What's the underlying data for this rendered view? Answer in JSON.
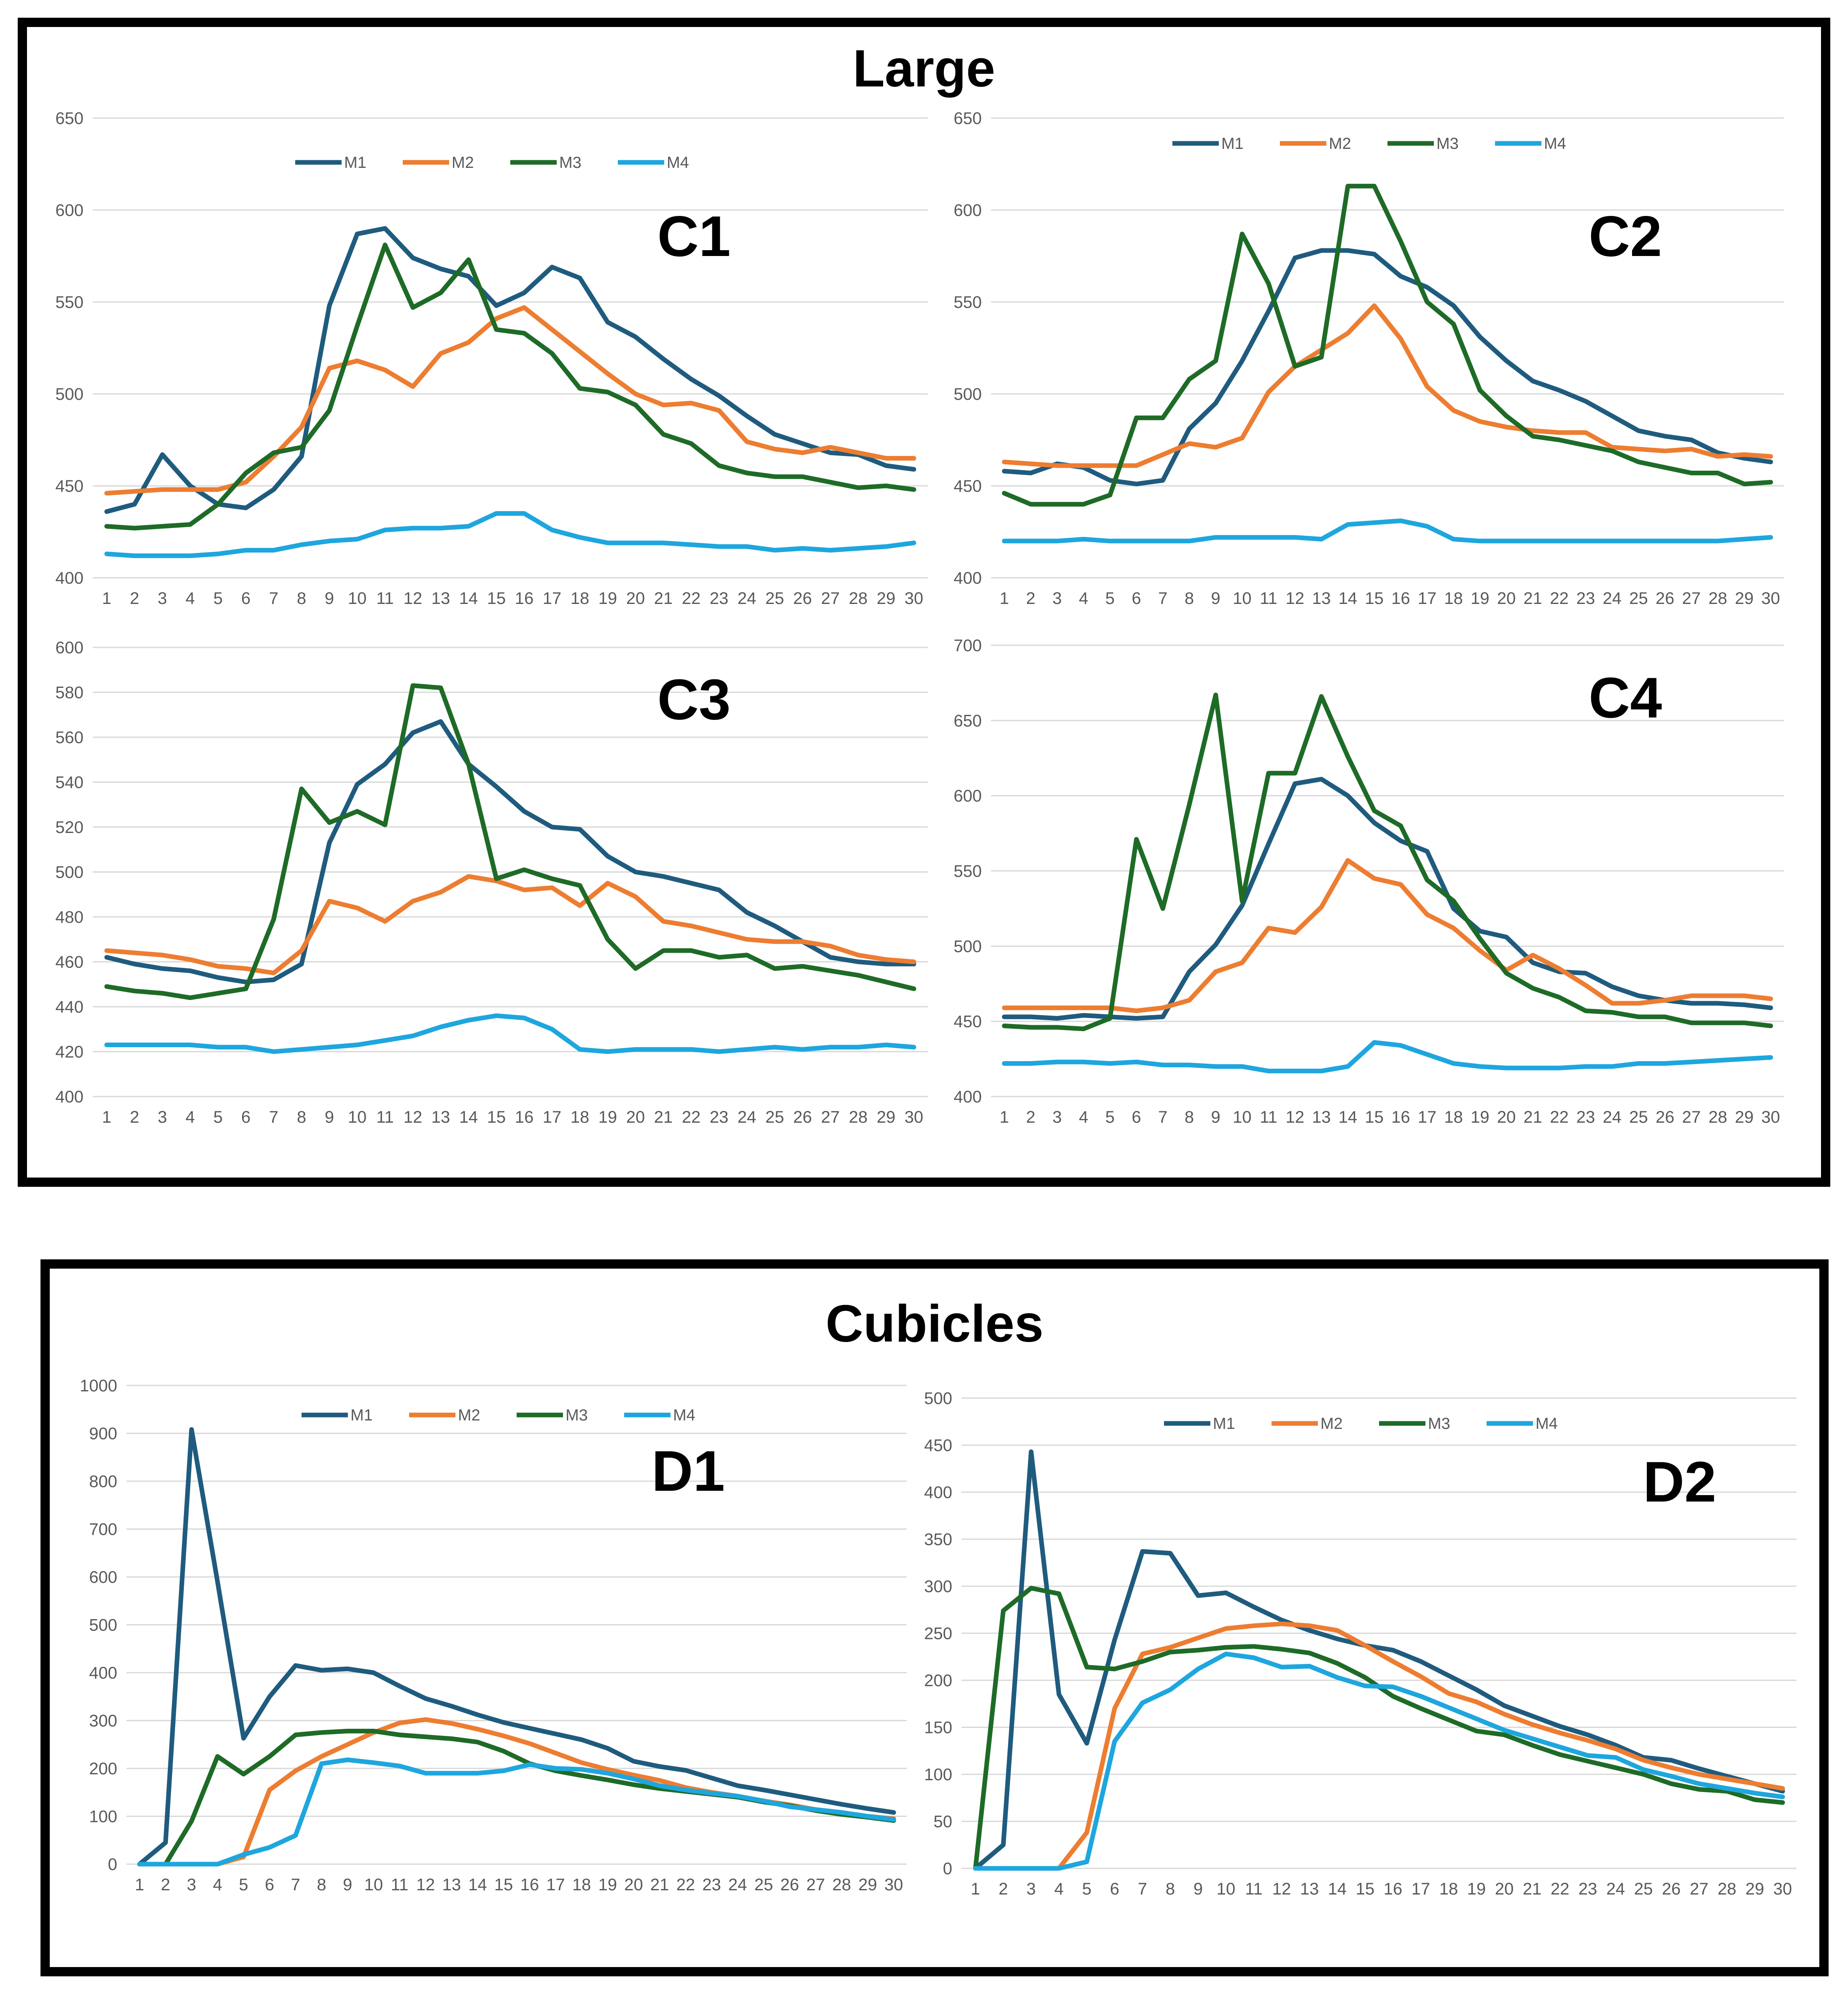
{
  "panels": {
    "large_title": "Large",
    "cubicles_title": "Cubicles"
  },
  "series_colors": {
    "M1": "#1f5b7e",
    "M2": "#ed7d31",
    "M3": "#1e6b27",
    "M4": "#1ea6de"
  },
  "chart_data": [
    {
      "id": "c1",
      "type": "line",
      "title": "C1",
      "group": "Large",
      "x": [
        1,
        2,
        3,
        4,
        5,
        6,
        7,
        8,
        9,
        10,
        11,
        12,
        13,
        14,
        15,
        16,
        17,
        18,
        19,
        20,
        21,
        22,
        23,
        24,
        25,
        26,
        27,
        28,
        29,
        30
      ],
      "ylim": [
        400,
        650
      ],
      "yticks": [
        400,
        450,
        500,
        550,
        600,
        650
      ],
      "legend": "top",
      "series": [
        {
          "name": "M1",
          "values": [
            436,
            440,
            467,
            450,
            440,
            438,
            448,
            466,
            548,
            587,
            590,
            574,
            568,
            564,
            548,
            555,
            569,
            563,
            539,
            531,
            519,
            508,
            499,
            488,
            478,
            473,
            468,
            467,
            461,
            459
          ]
        },
        {
          "name": "M2",
          "values": [
            446,
            447,
            448,
            448,
            448,
            452,
            466,
            482,
            514,
            518,
            513,
            504,
            522,
            528,
            541,
            547,
            535,
            523,
            511,
            500,
            494,
            495,
            491,
            474,
            470,
            468,
            471,
            468,
            465,
            465
          ]
        },
        {
          "name": "M3",
          "values": [
            428,
            427,
            428,
            429,
            440,
            457,
            468,
            471,
            491,
            537,
            581,
            547,
            555,
            573,
            535,
            533,
            522,
            503,
            501,
            494,
            478,
            473,
            461,
            457,
            455,
            455,
            452,
            449,
            450,
            448
          ]
        },
        {
          "name": "M4",
          "values": [
            413,
            412,
            412,
            412,
            413,
            415,
            415,
            418,
            420,
            421,
            426,
            427,
            427,
            428,
            435,
            435,
            426,
            422,
            419,
            419,
            419,
            418,
            417,
            417,
            415,
            416,
            415,
            416,
            417,
            419
          ]
        }
      ]
    },
    {
      "id": "c2",
      "type": "line",
      "title": "C2",
      "group": "Large",
      "x": [
        1,
        2,
        3,
        4,
        5,
        6,
        7,
        8,
        9,
        10,
        11,
        12,
        13,
        14,
        15,
        16,
        17,
        18,
        19,
        20,
        21,
        22,
        23,
        24,
        25,
        26,
        27,
        28,
        29,
        30
      ],
      "ylim": [
        400,
        650
      ],
      "yticks": [
        400,
        450,
        500,
        550,
        600,
        650
      ],
      "legend": "top",
      "series": [
        {
          "name": "M1",
          "values": [
            458,
            457,
            462,
            460,
            453,
            451,
            453,
            481,
            495,
            518,
            545,
            574,
            578,
            578,
            576,
            564,
            558,
            548,
            531,
            518,
            507,
            502,
            496,
            488,
            480,
            477,
            475,
            468,
            465,
            463
          ]
        },
        {
          "name": "M2",
          "values": [
            463,
            462,
            461,
            461,
            461,
            461,
            467,
            473,
            471,
            476,
            501,
            515,
            524,
            533,
            548,
            530,
            504,
            491,
            485,
            482,
            480,
            479,
            479,
            471,
            470,
            469,
            470,
            466,
            467,
            466
          ]
        },
        {
          "name": "M3",
          "values": [
            446,
            440,
            440,
            440,
            445,
            487,
            487,
            508,
            518,
            587,
            560,
            515,
            520,
            613,
            613,
            583,
            550,
            538,
            502,
            488,
            477,
            475,
            472,
            469,
            463,
            460,
            457,
            457,
            451,
            452
          ]
        },
        {
          "name": "M4",
          "values": [
            420,
            420,
            420,
            421,
            420,
            420,
            420,
            420,
            422,
            422,
            422,
            422,
            421,
            429,
            430,
            431,
            428,
            421,
            420,
            420,
            420,
            420,
            420,
            420,
            420,
            420,
            420,
            420,
            421,
            422
          ]
        }
      ]
    },
    {
      "id": "c3",
      "type": "line",
      "title": "C3",
      "group": "Large",
      "x": [
        1,
        2,
        3,
        4,
        5,
        6,
        7,
        8,
        9,
        10,
        11,
        12,
        13,
        14,
        15,
        16,
        17,
        18,
        19,
        20,
        21,
        22,
        23,
        24,
        25,
        26,
        27,
        28,
        29,
        30
      ],
      "ylim": [
        400,
        600
      ],
      "yticks": [
        400,
        420,
        440,
        460,
        480,
        500,
        520,
        540,
        560,
        580,
        600
      ],
      "legend": "none",
      "series": [
        {
          "name": "M1",
          "values": [
            462,
            459,
            457,
            456,
            453,
            451,
            452,
            459,
            513,
            539,
            548,
            562,
            567,
            548,
            538,
            527,
            520,
            519,
            507,
            500,
            498,
            495,
            492,
            482,
            476,
            469,
            462,
            460,
            459,
            459
          ]
        },
        {
          "name": "M2",
          "values": [
            465,
            464,
            463,
            461,
            458,
            457,
            455,
            465,
            487,
            484,
            478,
            487,
            491,
            498,
            496,
            492,
            493,
            485,
            495,
            489,
            478,
            476,
            473,
            470,
            469,
            469,
            467,
            463,
            461,
            460
          ]
        },
        {
          "name": "M3",
          "values": [
            449,
            447,
            446,
            444,
            446,
            448,
            479,
            537,
            522,
            527,
            521,
            583,
            582,
            548,
            497,
            501,
            497,
            494,
            470,
            457,
            465,
            465,
            462,
            463,
            457,
            458,
            456,
            454,
            451,
            448
          ]
        },
        {
          "name": "M4",
          "values": [
            423,
            423,
            423,
            423,
            422,
            422,
            420,
            421,
            422,
            423,
            425,
            427,
            431,
            434,
            436,
            435,
            430,
            421,
            420,
            421,
            421,
            421,
            420,
            421,
            422,
            421,
            422,
            422,
            423,
            422
          ]
        }
      ]
    },
    {
      "id": "c4",
      "type": "line",
      "title": "C4",
      "group": "Large",
      "x": [
        1,
        2,
        3,
        4,
        5,
        6,
        7,
        8,
        9,
        10,
        11,
        12,
        13,
        14,
        15,
        16,
        17,
        18,
        19,
        20,
        21,
        22,
        23,
        24,
        25,
        26,
        27,
        28,
        29,
        30
      ],
      "ylim": [
        400,
        700
      ],
      "yticks": [
        400,
        450,
        500,
        550,
        600,
        650,
        700
      ],
      "legend": "none",
      "series": [
        {
          "name": "M1",
          "values": [
            453,
            453,
            452,
            454,
            453,
            452,
            453,
            483,
            501,
            527,
            568,
            608,
            611,
            600,
            582,
            570,
            563,
            525,
            510,
            506,
            489,
            483,
            482,
            473,
            467,
            464,
            462,
            462,
            461,
            459
          ]
        },
        {
          "name": "M2",
          "values": [
            459,
            459,
            459,
            459,
            459,
            457,
            459,
            464,
            483,
            489,
            512,
            509,
            526,
            557,
            545,
            541,
            521,
            512,
            497,
            484,
            494,
            485,
            474,
            462,
            462,
            464,
            467,
            467,
            467,
            465
          ]
        },
        {
          "name": "M3",
          "values": [
            447,
            446,
            446,
            445,
            452,
            571,
            525,
            594,
            667,
            530,
            615,
            615,
            666,
            626,
            590,
            580,
            544,
            530,
            505,
            482,
            472,
            466,
            457,
            456,
            453,
            453,
            449,
            449,
            449,
            447
          ]
        },
        {
          "name": "M4",
          "values": [
            422,
            422,
            423,
            423,
            422,
            423,
            421,
            421,
            420,
            420,
            417,
            417,
            417,
            420,
            436,
            434,
            428,
            422,
            420,
            419,
            419,
            419,
            420,
            420,
            422,
            422,
            423,
            424,
            425,
            426
          ]
        }
      ]
    },
    {
      "id": "d1",
      "type": "line",
      "title": "D1",
      "group": "Cubicles",
      "x": [
        1,
        2,
        3,
        4,
        5,
        6,
        7,
        8,
        9,
        10,
        11,
        12,
        13,
        14,
        15,
        16,
        17,
        18,
        19,
        20,
        21,
        22,
        23,
        24,
        25,
        26,
        27,
        28,
        29,
        30
      ],
      "ylim": [
        0,
        1000
      ],
      "yticks": [
        0,
        100,
        200,
        300,
        400,
        500,
        600,
        700,
        800,
        900,
        1000
      ],
      "legend": "top",
      "series": [
        {
          "name": "M1",
          "values": [
            0,
            45,
            908,
            590,
            263,
            350,
            415,
            405,
            408,
            400,
            372,
            346,
            330,
            312,
            296,
            284,
            272,
            260,
            242,
            215,
            204,
            196,
            180,
            164,
            155,
            145,
            135,
            125,
            116,
            108
          ]
        },
        {
          "name": "M2",
          "values": [
            0,
            0,
            0,
            0,
            15,
            155,
            195,
            225,
            250,
            275,
            295,
            302,
            294,
            282,
            268,
            252,
            232,
            212,
            198,
            186,
            175,
            160,
            150,
            142,
            132,
            124,
            114,
            106,
            100,
            95
          ]
        },
        {
          "name": "M3",
          "values": [
            0,
            0,
            90,
            225,
            188,
            225,
            270,
            275,
            278,
            278,
            270,
            266,
            262,
            255,
            236,
            210,
            195,
            185,
            176,
            166,
            158,
            152,
            146,
            140,
            130,
            122,
            112,
            104,
            98,
            91
          ]
        },
        {
          "name": "M4",
          "values": [
            0,
            0,
            0,
            0,
            20,
            35,
            60,
            210,
            218,
            212,
            205,
            190,
            190,
            190,
            195,
            208,
            200,
            198,
            190,
            178,
            164,
            155,
            148,
            142,
            132,
            120,
            114,
            108,
            100,
            93
          ]
        }
      ]
    },
    {
      "id": "d2",
      "type": "line",
      "title": "D2",
      "group": "Cubicles",
      "x": [
        1,
        2,
        3,
        4,
        5,
        6,
        7,
        8,
        9,
        10,
        11,
        12,
        13,
        14,
        15,
        16,
        17,
        18,
        19,
        20,
        21,
        22,
        23,
        24,
        25,
        26,
        27,
        28,
        29,
        30
      ],
      "ylim": [
        0,
        500
      ],
      "yticks": [
        0,
        50,
        100,
        150,
        200,
        250,
        300,
        350,
        400,
        450,
        500
      ],
      "legend": "top",
      "series": [
        {
          "name": "M1",
          "values": [
            0,
            25,
            443,
            185,
            133,
            243,
            337,
            335,
            290,
            293,
            278,
            264,
            253,
            244,
            237,
            232,
            220,
            205,
            190,
            173,
            162,
            151,
            142,
            131,
            118,
            115,
            106,
            98,
            90,
            82
          ]
        },
        {
          "name": "M2",
          "values": [
            0,
            0,
            0,
            0,
            38,
            170,
            228,
            235,
            245,
            255,
            258,
            260,
            258,
            253,
            237,
            220,
            204,
            186,
            177,
            164,
            153,
            144,
            136,
            127,
            115,
            107,
            100,
            95,
            90,
            85
          ]
        },
        {
          "name": "M3",
          "values": [
            0,
            274,
            298,
            292,
            214,
            212,
            220,
            230,
            232,
            235,
            236,
            233,
            229,
            218,
            203,
            183,
            170,
            158,
            146,
            142,
            131,
            121,
            114,
            107,
            100,
            90,
            84,
            82,
            73,
            70
          ]
        },
        {
          "name": "M4",
          "values": [
            0,
            0,
            0,
            0,
            7,
            135,
            176,
            190,
            212,
            228,
            224,
            214,
            215,
            203,
            194,
            193,
            183,
            171,
            159,
            147,
            138,
            129,
            120,
            118,
            105,
            98,
            90,
            85,
            80,
            76
          ]
        }
      ]
    }
  ]
}
